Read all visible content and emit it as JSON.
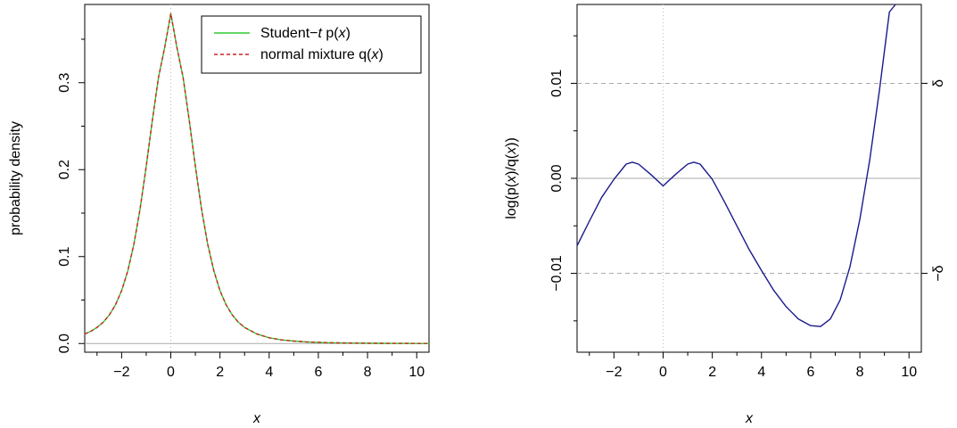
{
  "chart_data": [
    {
      "type": "line",
      "xlabel": "x",
      "ylabel": "probability density",
      "xlim": [
        -3.5,
        10.5
      ],
      "ylim": [
        -0.01,
        0.39
      ],
      "xticks": [
        "−2",
        "0",
        "2",
        "4",
        "6",
        "8",
        "10"
      ],
      "xtick_values": [
        -2,
        0,
        2,
        4,
        6,
        8,
        10
      ],
      "yticks": [
        "0.0",
        "0.1",
        "0.2",
        "0.3"
      ],
      "ytick_values": [
        0,
        0.1,
        0.2,
        0.3
      ],
      "reference_lines": {
        "vertical_dotted_x": 0,
        "horizontal_gray_y": 0
      },
      "legend": {
        "placement": "top-right",
        "entries": [
          {
            "prefix": "Student−",
            "italic": "t",
            "mid": " p(",
            "var": "x",
            "suffix": ")",
            "color": "#33cc33",
            "style": "solid"
          },
          {
            "prefix": "normal mixture q(",
            "italic": "",
            "mid": "",
            "var": "x",
            "suffix": ")",
            "color": "#cc2222",
            "style": "dashed"
          }
        ]
      },
      "series": [
        {
          "name": "Student-t p(x)",
          "color": "#33cc33",
          "x": [
            -3.5,
            -3.25,
            -3,
            -2.75,
            -2.5,
            -2.25,
            -2,
            -1.75,
            -1.5,
            -1.25,
            -1,
            -0.75,
            -0.5,
            -0.25,
            0,
            0.25,
            0.5,
            0.75,
            1,
            1.25,
            1.5,
            1.75,
            2,
            2.25,
            2.5,
            2.75,
            3,
            3.5,
            4,
            4.5,
            5,
            5.5,
            6,
            6.5,
            7,
            7.5,
            8,
            8.5,
            9,
            9.5,
            10,
            10.5
          ],
          "y": [
            0.0109,
            0.0141,
            0.0185,
            0.0245,
            0.0329,
            0.0446,
            0.0609,
            0.0835,
            0.1141,
            0.1543,
            0.2034,
            0.2567,
            0.306,
            0.3403,
            0.3796,
            0.3403,
            0.306,
            0.2567,
            0.2034,
            0.1543,
            0.1141,
            0.0835,
            0.0609,
            0.0446,
            0.0329,
            0.0245,
            0.0185,
            0.0109,
            0.0066,
            0.0042,
            0.0028,
            0.0019,
            0.0013,
            0.0009,
            0.0007,
            0.0005,
            0.0004,
            0.0003,
            0.0002,
            0.0002,
            0.0001,
            0.0001
          ]
        },
        {
          "name": "normal mixture q(x)",
          "color": "#cc2222",
          "x": [
            -3.5,
            -3.25,
            -3,
            -2.75,
            -2.5,
            -2.25,
            -2,
            -1.75,
            -1.5,
            -1.25,
            -1,
            -0.75,
            -0.5,
            -0.25,
            0,
            0.25,
            0.5,
            0.75,
            1,
            1.25,
            1.5,
            1.75,
            2,
            2.25,
            2.5,
            2.75,
            3,
            3.5,
            4,
            4.5,
            5,
            5.5,
            6,
            6.5,
            7,
            7.5,
            8,
            8.5,
            9,
            9.5,
            10,
            10.5
          ],
          "y": [
            0.0109,
            0.0141,
            0.0185,
            0.0245,
            0.0329,
            0.0446,
            0.0609,
            0.0835,
            0.1141,
            0.1543,
            0.2034,
            0.2567,
            0.306,
            0.3403,
            0.3796,
            0.3403,
            0.306,
            0.2567,
            0.2034,
            0.1543,
            0.1141,
            0.0835,
            0.0609,
            0.0446,
            0.0329,
            0.0245,
            0.0185,
            0.0109,
            0.0066,
            0.0042,
            0.0028,
            0.0019,
            0.0013,
            0.0009,
            0.0007,
            0.0005,
            0.0004,
            0.0003,
            0.0002,
            0.0002,
            0.0001,
            0.0001
          ]
        }
      ]
    },
    {
      "type": "line",
      "xlabel": "x",
      "ylabel_parts": [
        "log(p(",
        "x",
        ")/q(",
        "x",
        "))"
      ],
      "xlim": [
        -3.5,
        10.5
      ],
      "ylim": [
        -0.0183,
        0.0183
      ],
      "xticks": [
        "−2",
        "0",
        "2",
        "4",
        "6",
        "8",
        "10"
      ],
      "xtick_values": [
        -2,
        0,
        2,
        4,
        6,
        8,
        10
      ],
      "yticks": [
        "−0.01",
        "0.00",
        "0.01"
      ],
      "ytick_values": [
        -0.01,
        0,
        0.01
      ],
      "right_axis": {
        "labels": [
          "δ",
          "−δ"
        ],
        "values": [
          0.01,
          -0.01
        ]
      },
      "reference_lines": {
        "vertical_dotted_x": 0,
        "horizontal_gray_y": 0,
        "dashed_y": [
          0.01,
          -0.01
        ]
      },
      "series": [
        {
          "color": "#1a1a8c",
          "x": [
            -3.5,
            -3,
            -2.5,
            -2,
            -1.5,
            -1.25,
            -1,
            -0.5,
            0,
            0.5,
            1,
            1.25,
            1.5,
            2,
            2.5,
            3,
            3.5,
            4,
            4.5,
            5,
            5.5,
            6,
            6.4,
            6.8,
            7.2,
            7.6,
            8,
            8.4,
            8.8,
            9.2,
            9.45
          ],
          "y": [
            -0.0071,
            -0.0045,
            -0.002,
            -0.0001,
            0.0015,
            0.0017,
            0.0015,
            0.0004,
            -0.0008,
            0.0004,
            0.0015,
            0.0017,
            0.0015,
            -0.0001,
            -0.0025,
            -0.005,
            -0.0075,
            -0.0097,
            -0.0118,
            -0.0135,
            -0.0148,
            -0.0155,
            -0.0156,
            -0.0148,
            -0.0128,
            -0.0093,
            -0.0043,
            0.0019,
            0.0093,
            0.0175,
            0.0183
          ]
        }
      ]
    }
  ]
}
